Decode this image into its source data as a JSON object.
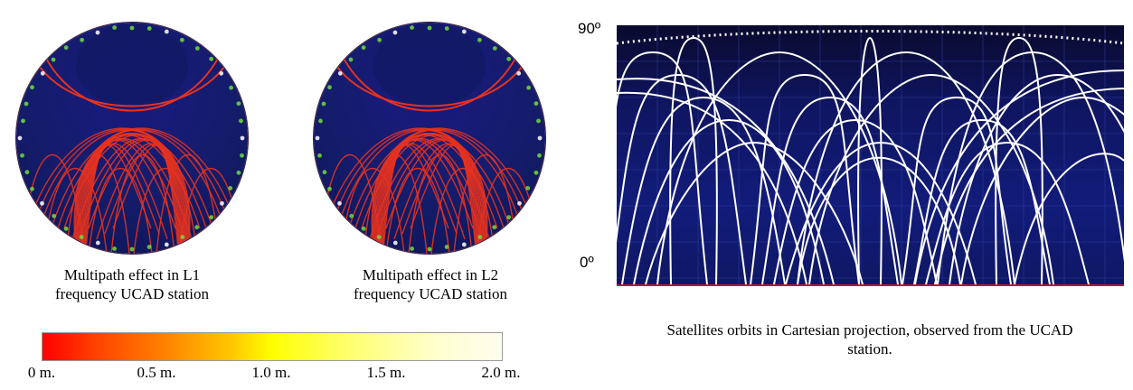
{
  "skyplots": [
    {
      "caption_line1": "Multipath effect in L1",
      "caption_line2": "frequency UCAD station"
    },
    {
      "caption_line1": "Multipath effect in L2",
      "caption_line2": "frequency UCAD station"
    }
  ],
  "colorbar": {
    "ticks": [
      "0 m.",
      "0.5 m.",
      "1.0 m.",
      "1.5 m.",
      "2.0 m."
    ],
    "colors": [
      "#ff0000",
      "#ff8800",
      "#ffff00",
      "#ffffcc",
      "#fdfdf0"
    ]
  },
  "cartesian": {
    "label_top": "90º",
    "label_bottom": "0º",
    "caption_line1": "Satellites orbits in Cartesian projection, observed from the UCAD",
    "caption_line2": "station."
  },
  "colors": {
    "sky_background": "#141c6a",
    "track_color": "#e8321e",
    "orbit_color": "#ffffff",
    "highlight": "#6fdc3a"
  }
}
